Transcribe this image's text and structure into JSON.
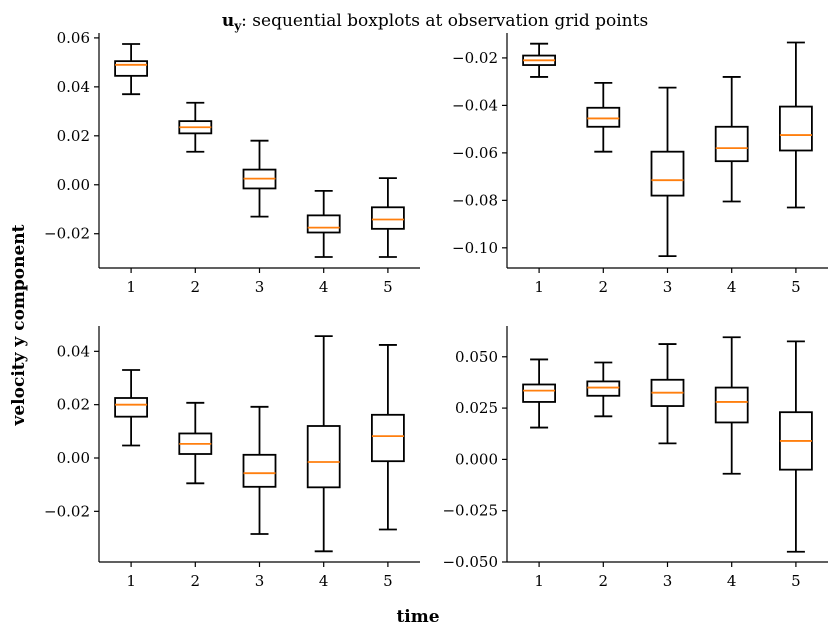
{
  "figure": {
    "title_main": "u",
    "title_sub": "y",
    "title_rest": ": sequential boxplots at observation grid points",
    "ylabel": "velocity y component",
    "xlabel": "time",
    "median_color": "#ff7f0e",
    "box_color": "#000000"
  },
  "chart_data": [
    {
      "type": "box",
      "position": "top-left",
      "categories": [
        "1",
        "2",
        "3",
        "4",
        "5"
      ],
      "ylim": [
        -0.034,
        0.062
      ],
      "yticks": [
        -0.02,
        0.0,
        0.02,
        0.04,
        0.06
      ],
      "ytick_labels": [
        "−0.02",
        "0.00",
        "0.02",
        "0.04",
        "0.06"
      ],
      "boxes": [
        {
          "min": 0.037,
          "q1": 0.0445,
          "median": 0.049,
          "q3": 0.0505,
          "max": 0.0575
        },
        {
          "min": 0.0135,
          "q1": 0.021,
          "median": 0.0235,
          "q3": 0.026,
          "max": 0.0335
        },
        {
          "min": -0.013,
          "q1": -0.0015,
          "median": 0.0025,
          "q3": 0.0062,
          "max": 0.018
        },
        {
          "min": -0.0295,
          "q1": -0.0195,
          "median": -0.0175,
          "q3": -0.0125,
          "max": -0.0025
        },
        {
          "min": -0.0295,
          "q1": -0.018,
          "median": -0.0142,
          "q3": -0.0092,
          "max": 0.0027
        }
      ]
    },
    {
      "type": "box",
      "position": "top-right",
      "categories": [
        "1",
        "2",
        "3",
        "4",
        "5"
      ],
      "ylim": [
        -0.1085,
        -0.0095
      ],
      "yticks": [
        -0.1,
        -0.08,
        -0.06,
        -0.04,
        -0.02
      ],
      "ytick_labels": [
        "−0.10",
        "−0.08",
        "−0.06",
        "−0.04",
        "−0.02"
      ],
      "boxes": [
        {
          "min": -0.028,
          "q1": -0.023,
          "median": -0.021,
          "q3": -0.019,
          "max": -0.014
        },
        {
          "min": -0.0595,
          "q1": -0.049,
          "median": -0.0455,
          "q3": -0.041,
          "max": -0.0305
        },
        {
          "min": -0.1035,
          "q1": -0.078,
          "median": -0.0715,
          "q3": -0.0595,
          "max": -0.0325
        },
        {
          "min": -0.0805,
          "q1": -0.0635,
          "median": -0.058,
          "q3": -0.049,
          "max": -0.028
        },
        {
          "min": -0.083,
          "q1": -0.059,
          "median": -0.0525,
          "q3": -0.0405,
          "max": -0.0135
        }
      ]
    },
    {
      "type": "box",
      "position": "bottom-left",
      "categories": [
        "1",
        "2",
        "3",
        "4",
        "5"
      ],
      "ylim": [
        -0.039,
        0.0495
      ],
      "yticks": [
        -0.02,
        0.0,
        0.02,
        0.04
      ],
      "ytick_labels": [
        "−0.02",
        "0.00",
        "0.02",
        "0.04"
      ],
      "boxes": [
        {
          "min": 0.0047,
          "q1": 0.0155,
          "median": 0.02,
          "q3": 0.0225,
          "max": 0.033
        },
        {
          "min": -0.0095,
          "q1": 0.0015,
          "median": 0.0053,
          "q3": 0.0092,
          "max": 0.0207
        },
        {
          "min": -0.0285,
          "q1": -0.0108,
          "median": -0.0057,
          "q3": 0.0012,
          "max": 0.0192
        },
        {
          "min": -0.035,
          "q1": -0.011,
          "median": -0.0015,
          "q3": 0.012,
          "max": 0.0457
        },
        {
          "min": -0.0268,
          "q1": -0.0012,
          "median": 0.0082,
          "q3": 0.0162,
          "max": 0.0424
        }
      ]
    },
    {
      "type": "box",
      "position": "bottom-right",
      "categories": [
        "1",
        "2",
        "3",
        "4",
        "5"
      ],
      "ylim": [
        -0.05,
        0.065
      ],
      "yticks": [
        -0.05,
        -0.025,
        0.0,
        0.025,
        0.05
      ],
      "ytick_labels": [
        "−0.050",
        "−0.025",
        "0.000",
        "0.025",
        "0.050"
      ],
      "boxes": [
        {
          "min": 0.0155,
          "q1": 0.028,
          "median": 0.0335,
          "q3": 0.0365,
          "max": 0.0487
        },
        {
          "min": 0.021,
          "q1": 0.031,
          "median": 0.035,
          "q3": 0.038,
          "max": 0.0472
        },
        {
          "min": 0.0078,
          "q1": 0.026,
          "median": 0.0325,
          "q3": 0.0388,
          "max": 0.0562
        },
        {
          "min": -0.007,
          "q1": 0.018,
          "median": 0.028,
          "q3": 0.035,
          "max": 0.0595
        },
        {
          "min": -0.045,
          "q1": -0.005,
          "median": 0.009,
          "q3": 0.023,
          "max": 0.0575
        }
      ]
    }
  ]
}
